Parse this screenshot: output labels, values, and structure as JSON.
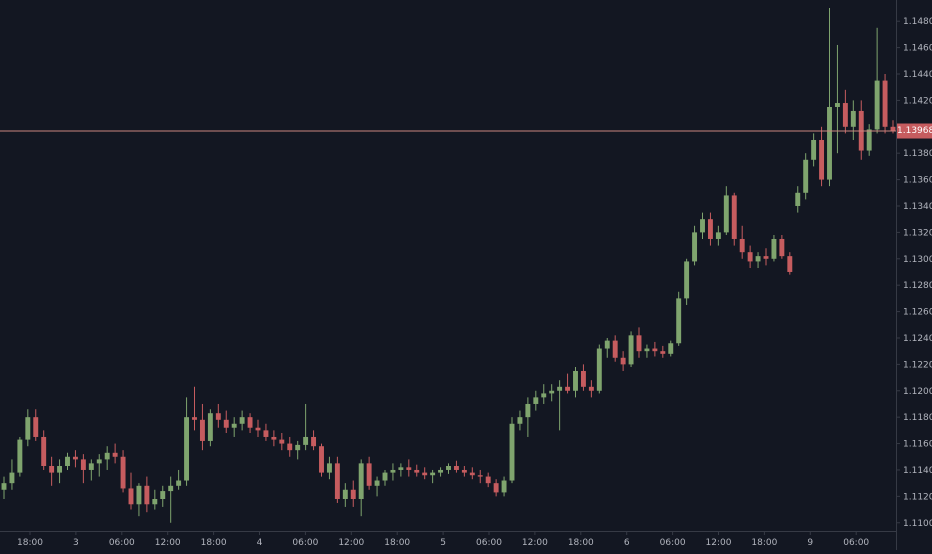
{
  "colors": {
    "background": "#131722",
    "up": "#7fa46e",
    "down": "#c65c5f",
    "crosshair": "#c9867f",
    "axis_text": "#b2b5be",
    "axis_line": "#363a45"
  },
  "current_price": "1.13968",
  "chart_data": {
    "type": "candlestick",
    "ylim": [
      1.1093,
      1.149
    ],
    "x_ticks": [
      "18:00",
      "3",
      "06:00",
      "12:00",
      "18:00",
      "4",
      "06:00",
      "12:00",
      "18:00",
      "5",
      "06:00",
      "12:00",
      "18:00",
      "6",
      "06:00",
      "12:00",
      "18:00",
      "9",
      "06:00"
    ],
    "y_ticks": [
      "1.14800",
      "1.14600",
      "1.14400",
      "1.14200",
      "1.14000",
      "1.13800",
      "1.13600",
      "1.13400",
      "1.13200",
      "1.13000",
      "1.12800",
      "1.12600",
      "1.12400",
      "1.12200",
      "1.12000",
      "1.11800",
      "1.11600",
      "1.11400",
      "1.11200",
      "1.11000"
    ],
    "candles": [
      [
        1.1125,
        1.1135,
        1.1118,
        1.113
      ],
      [
        1.113,
        1.1148,
        1.1125,
        1.1138
      ],
      [
        1.1138,
        1.1165,
        1.1135,
        1.1163
      ],
      [
        1.1163,
        1.1186,
        1.1158,
        1.118
      ],
      [
        1.118,
        1.1186,
        1.1162,
        1.1165
      ],
      [
        1.1165,
        1.117,
        1.114,
        1.1143
      ],
      [
        1.1143,
        1.115,
        1.1128,
        1.1138
      ],
      [
        1.1138,
        1.1148,
        1.113,
        1.1143
      ],
      [
        1.1143,
        1.1153,
        1.114,
        1.115
      ],
      [
        1.115,
        1.1155,
        1.1142,
        1.1148
      ],
      [
        1.1148,
        1.1152,
        1.113,
        1.114
      ],
      [
        1.114,
        1.1148,
        1.1132,
        1.1145
      ],
      [
        1.1145,
        1.1152,
        1.1135,
        1.1148
      ],
      [
        1.1148,
        1.1158,
        1.114,
        1.1153
      ],
      [
        1.1153,
        1.116,
        1.1145,
        1.115
      ],
      [
        1.115,
        1.1155,
        1.1123,
        1.1126
      ],
      [
        1.1126,
        1.1138,
        1.111,
        1.1114
      ],
      [
        1.1114,
        1.113,
        1.1105,
        1.1128
      ],
      [
        1.1128,
        1.1135,
        1.1108,
        1.1114
      ],
      [
        1.1114,
        1.1125,
        1.111,
        1.1118
      ],
      [
        1.1118,
        1.1128,
        1.1112,
        1.1124
      ],
      [
        1.1124,
        1.1135,
        1.11,
        1.1128
      ],
      [
        1.1128,
        1.114,
        1.1125,
        1.1132
      ],
      [
        1.1132,
        1.1195,
        1.1128,
        1.118
      ],
      [
        1.118,
        1.1203,
        1.117,
        1.1178
      ],
      [
        1.1178,
        1.119,
        1.1155,
        1.1162
      ],
      [
        1.1162,
        1.1186,
        1.1158,
        1.1183
      ],
      [
        1.1183,
        1.119,
        1.1172,
        1.1178
      ],
      [
        1.1178,
        1.1185,
        1.1168,
        1.1172
      ],
      [
        1.1172,
        1.118,
        1.1165,
        1.1175
      ],
      [
        1.1175,
        1.1185,
        1.117,
        1.118
      ],
      [
        1.118,
        1.1183,
        1.1168,
        1.1172
      ],
      [
        1.1172,
        1.1178,
        1.1165,
        1.117
      ],
      [
        1.117,
        1.1175,
        1.1162,
        1.1165
      ],
      [
        1.1165,
        1.117,
        1.1158,
        1.1163
      ],
      [
        1.1163,
        1.1168,
        1.1155,
        1.116
      ],
      [
        1.116,
        1.1165,
        1.115,
        1.1155
      ],
      [
        1.1155,
        1.1162,
        1.1148,
        1.1159
      ],
      [
        1.1159,
        1.119,
        1.1155,
        1.1165
      ],
      [
        1.1165,
        1.117,
        1.1155,
        1.1158
      ],
      [
        1.1158,
        1.116,
        1.1135,
        1.1138
      ],
      [
        1.1138,
        1.115,
        1.1133,
        1.1145
      ],
      [
        1.1145,
        1.115,
        1.1115,
        1.1118
      ],
      [
        1.1118,
        1.113,
        1.1112,
        1.1125
      ],
      [
        1.1125,
        1.1132,
        1.1112,
        1.1118
      ],
      [
        1.1118,
        1.1148,
        1.1105,
        1.1145
      ],
      [
        1.1145,
        1.115,
        1.1125,
        1.1128
      ],
      [
        1.1128,
        1.1135,
        1.112,
        1.1132
      ],
      [
        1.1132,
        1.114,
        1.1128,
        1.1138
      ],
      [
        1.1138,
        1.1145,
        1.1132,
        1.114
      ],
      [
        1.114,
        1.1145,
        1.1135,
        1.1142
      ],
      [
        1.1142,
        1.1148,
        1.1135,
        1.114
      ],
      [
        1.114,
        1.1144,
        1.1135,
        1.1138
      ],
      [
        1.1138,
        1.1142,
        1.1133,
        1.1136
      ],
      [
        1.1136,
        1.114,
        1.113,
        1.1138
      ],
      [
        1.1138,
        1.1142,
        1.1135,
        1.114
      ],
      [
        1.114,
        1.1145,
        1.1137,
        1.1143
      ],
      [
        1.1143,
        1.1147,
        1.1138,
        1.114
      ],
      [
        1.114,
        1.1143,
        1.1135,
        1.1138
      ],
      [
        1.1138,
        1.1142,
        1.1133,
        1.1136
      ],
      [
        1.1136,
        1.114,
        1.113,
        1.1135
      ],
      [
        1.1135,
        1.1138,
        1.1127,
        1.113
      ],
      [
        1.113,
        1.1133,
        1.112,
        1.1123
      ],
      [
        1.1123,
        1.1135,
        1.112,
        1.1132
      ],
      [
        1.1132,
        1.118,
        1.113,
        1.1175
      ],
      [
        1.1175,
        1.1185,
        1.117,
        1.118
      ],
      [
        1.118,
        1.1195,
        1.1165,
        1.119
      ],
      [
        1.119,
        1.12,
        1.1185,
        1.1195
      ],
      [
        1.1195,
        1.1205,
        1.119,
        1.1198
      ],
      [
        1.1198,
        1.1205,
        1.1192,
        1.12
      ],
      [
        1.12,
        1.1208,
        1.117,
        1.1203
      ],
      [
        1.1203,
        1.1213,
        1.1198,
        1.12
      ],
      [
        1.12,
        1.1218,
        1.1195,
        1.1215
      ],
      [
        1.1215,
        1.122,
        1.12,
        1.1203
      ],
      [
        1.1203,
        1.1208,
        1.1195,
        1.12
      ],
      [
        1.12,
        1.1235,
        1.1198,
        1.1232
      ],
      [
        1.1232,
        1.124,
        1.1225,
        1.1238
      ],
      [
        1.1238,
        1.1242,
        1.1222,
        1.1225
      ],
      [
        1.1225,
        1.123,
        1.1215,
        1.122
      ],
      [
        1.122,
        1.1245,
        1.1218,
        1.1242
      ],
      [
        1.1242,
        1.1248,
        1.1225,
        1.123
      ],
      [
        1.123,
        1.1235,
        1.1225,
        1.1232
      ],
      [
        1.1232,
        1.1237,
        1.1226,
        1.123
      ],
      [
        1.123,
        1.1234,
        1.1225,
        1.1228
      ],
      [
        1.1228,
        1.1238,
        1.1226,
        1.1236
      ],
      [
        1.1236,
        1.1275,
        1.1234,
        1.127
      ],
      [
        1.127,
        1.13,
        1.1265,
        1.1298
      ],
      [
        1.1298,
        1.1325,
        1.1295,
        1.132
      ],
      [
        1.132,
        1.1335,
        1.1315,
        1.133
      ],
      [
        1.133,
        1.1335,
        1.131,
        1.1315
      ],
      [
        1.1315,
        1.1325,
        1.131,
        1.132
      ],
      [
        1.132,
        1.1355,
        1.1318,
        1.1348
      ],
      [
        1.1348,
        1.135,
        1.131,
        1.1315
      ],
      [
        1.1315,
        1.1325,
        1.13,
        1.1305
      ],
      [
        1.1305,
        1.131,
        1.1293,
        1.1298
      ],
      [
        1.1298,
        1.1305,
        1.1293,
        1.1302
      ],
      [
        1.1302,
        1.1308,
        1.1295,
        1.13
      ],
      [
        1.13,
        1.1318,
        1.1298,
        1.1315
      ],
      [
        1.1315,
        1.1318,
        1.13,
        1.1302
      ],
      [
        1.1302,
        1.1305,
        1.1288,
        1.129
      ],
      [
        1.134,
        1.1355,
        1.1335,
        1.135
      ],
      [
        1.135,
        1.138,
        1.1345,
        1.1375
      ],
      [
        1.1375,
        1.1395,
        1.137,
        1.139
      ],
      [
        1.139,
        1.14,
        1.1355,
        1.136
      ],
      [
        1.136,
        1.149,
        1.1355,
        1.1415
      ],
      [
        1.1415,
        1.1462,
        1.138,
        1.1418
      ],
      [
        1.1418,
        1.1428,
        1.1395,
        1.14
      ],
      [
        1.14,
        1.142,
        1.139,
        1.1412
      ],
      [
        1.1412,
        1.142,
        1.1375,
        1.1382
      ],
      [
        1.1382,
        1.1402,
        1.1378,
        1.1398
      ],
      [
        1.1398,
        1.1475,
        1.1395,
        1.1435
      ],
      [
        1.1435,
        1.144,
        1.1395,
        1.14
      ],
      [
        1.14,
        1.1405,
        1.1395,
        1.1397
      ]
    ]
  }
}
